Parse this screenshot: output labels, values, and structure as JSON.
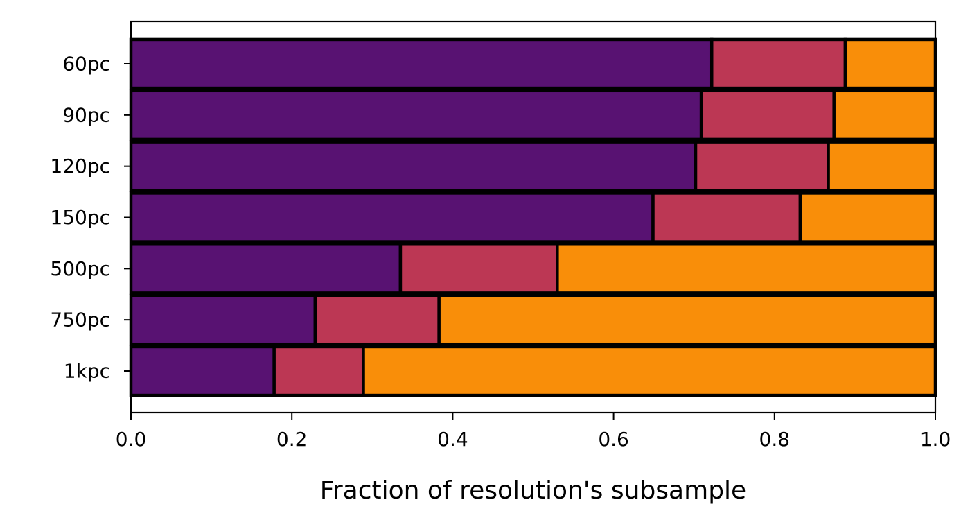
{
  "chart_data": {
    "type": "bar",
    "orientation": "horizontal",
    "stacked": true,
    "title": "",
    "xlabel": "Fraction of resolution's subsample",
    "ylabel": "",
    "xlim": [
      0,
      1
    ],
    "xticks": [
      0.0,
      0.2,
      0.4,
      0.6,
      0.8,
      1.0
    ],
    "xtick_labels": [
      "0.0",
      "0.2",
      "0.4",
      "0.6",
      "0.8",
      "1.0"
    ],
    "categories": [
      "60pc",
      "90pc",
      "120pc",
      "150pc",
      "500pc",
      "750pc",
      "1kpc"
    ],
    "series": [
      {
        "color": "#581272",
        "values": [
          0.722,
          0.709,
          0.702,
          0.649,
          0.335,
          0.229,
          0.178
        ]
      },
      {
        "color": "#bc3754",
        "values": [
          0.166,
          0.165,
          0.165,
          0.183,
          0.195,
          0.154,
          0.111
        ]
      },
      {
        "color": "#f98e09",
        "values": [
          0.112,
          0.126,
          0.133,
          0.168,
          0.47,
          0.617,
          0.711
        ]
      }
    ],
    "legend": false,
    "grid": false
  }
}
